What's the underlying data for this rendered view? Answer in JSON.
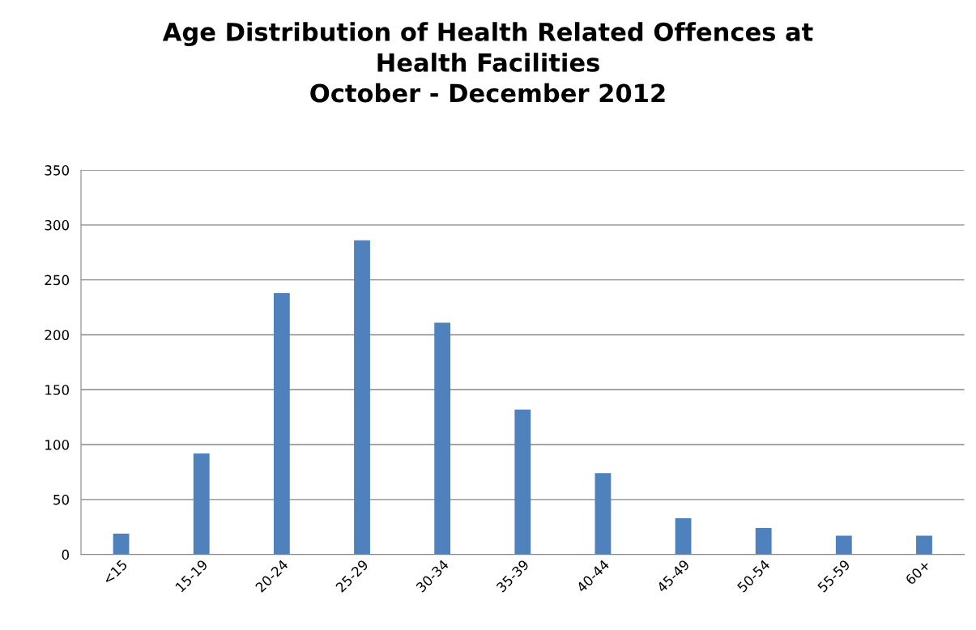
{
  "chart_data": {
    "type": "bar",
    "title": "Age Distribution of Health Related Offences at\nHealth Facilities\nOctober - December 2012",
    "categories": [
      "<15",
      "15-19",
      "20-24",
      "25-29",
      "30-34",
      "35-39",
      "40-44",
      "45-49",
      "50-54",
      "55-59",
      "60+"
    ],
    "values": [
      19,
      92,
      238,
      286,
      211,
      132,
      74,
      33,
      24,
      17,
      17
    ],
    "color": "#4f81bd",
    "ylim": [
      0,
      350
    ],
    "yticks": [
      0,
      50,
      100,
      150,
      200,
      250,
      300,
      350
    ],
    "grid": "y"
  }
}
